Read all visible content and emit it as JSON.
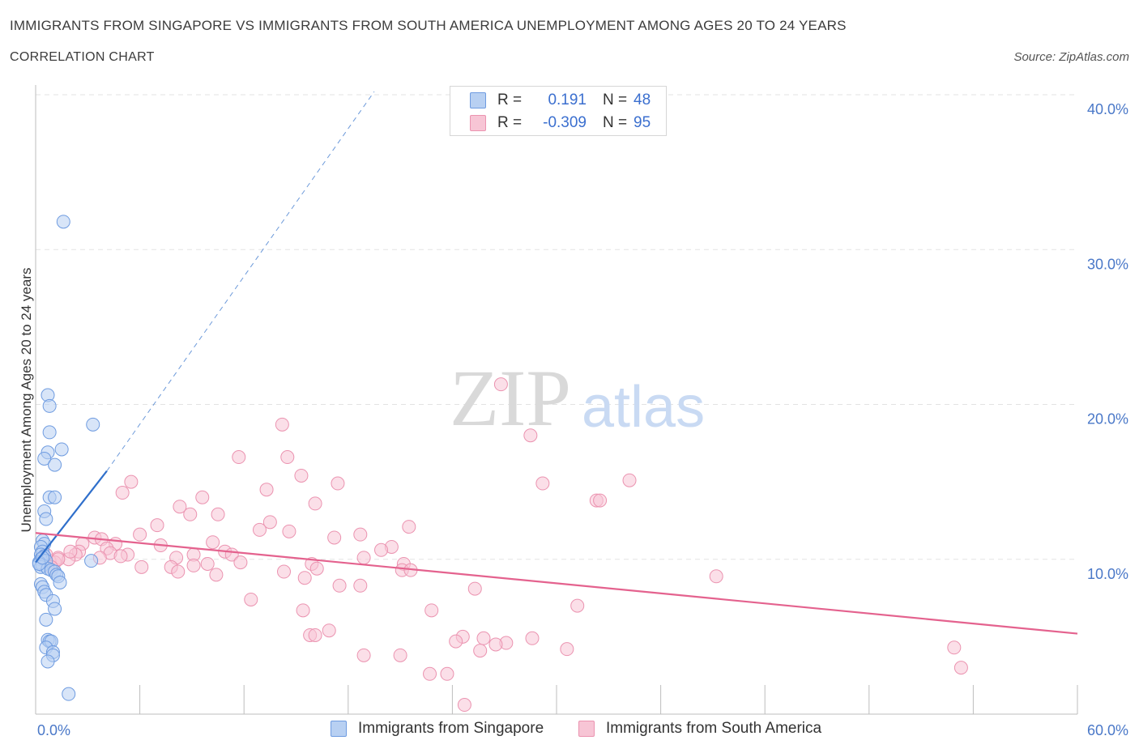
{
  "title": "IMMIGRANTS FROM SINGAPORE VS IMMIGRANTS FROM SOUTH AMERICA UNEMPLOYMENT AMONG AGES 20 TO 24 YEARS",
  "subtitle": "CORRELATION CHART",
  "source": "Source: ZipAtlas.com",
  "watermark": {
    "zip": "ZIP",
    "atlas": "atlas"
  },
  "colors": {
    "singapore_fill": "#b8d0f2",
    "singapore_stroke": "#6e9be0",
    "singapore_line": "#2f6fcb",
    "southamerica_fill": "#f7c5d5",
    "southamerica_stroke": "#eb93b0",
    "southamerica_line": "#e4628e",
    "grid": "#e3e3e3",
    "tick_text": "#4a78c8"
  },
  "legend": {
    "rows": [
      {
        "r_label": "R =",
        "r_value": "0.191",
        "n_label": "N =",
        "n_value": "48"
      },
      {
        "r_label": "R =",
        "r_value": "-0.309",
        "n_label": "N =",
        "n_value": "95"
      }
    ]
  },
  "chart_data": {
    "type": "scatter",
    "title": "IMMIGRANTS FROM SINGAPORE VS IMMIGRANTS FROM SOUTH AMERICA UNEMPLOYMENT AMONG AGES 20 TO 24 YEARS",
    "xlabel": "",
    "ylabel": "Unemployment Among Ages 20 to 24 years",
    "xlim": [
      0,
      60
    ],
    "ylim": [
      0,
      40
    ],
    "x_tick_labels": [
      "0.0%",
      "60.0%"
    ],
    "y_ticks": [
      10,
      20,
      30,
      40
    ],
    "y_tick_labels": [
      "10.0%",
      "20.0%",
      "30.0%",
      "40.0%"
    ],
    "grid": true,
    "legend_position": "top-center",
    "series": [
      {
        "name": "Immigrants from Singapore",
        "points": [
          [
            1.6,
            31.8
          ],
          [
            0.7,
            20.6
          ],
          [
            0.8,
            19.9
          ],
          [
            3.3,
            18.7
          ],
          [
            0.8,
            18.2
          ],
          [
            1.5,
            17.1
          ],
          [
            0.7,
            16.9
          ],
          [
            0.5,
            16.5
          ],
          [
            1.1,
            16.1
          ],
          [
            0.8,
            14.0
          ],
          [
            1.1,
            14.0
          ],
          [
            0.5,
            13.1
          ],
          [
            0.6,
            12.6
          ],
          [
            0.4,
            11.2
          ],
          [
            0.5,
            11.0
          ],
          [
            0.3,
            10.8
          ],
          [
            0.4,
            10.5
          ],
          [
            0.3,
            10.3
          ],
          [
            0.5,
            10.2
          ],
          [
            0.3,
            10.0
          ],
          [
            0.6,
            9.9
          ],
          [
            0.2,
            9.8
          ],
          [
            0.4,
            9.6
          ],
          [
            0.3,
            9.5
          ],
          [
            0.7,
            9.4
          ],
          [
            0.9,
            9.3
          ],
          [
            1.1,
            9.2
          ],
          [
            1.2,
            9.0
          ],
          [
            1.3,
            8.9
          ],
          [
            3.2,
            9.9
          ],
          [
            1.4,
            8.5
          ],
          [
            0.3,
            8.4
          ],
          [
            0.4,
            8.2
          ],
          [
            0.5,
            7.9
          ],
          [
            0.6,
            7.7
          ],
          [
            1.0,
            7.3
          ],
          [
            1.1,
            6.8
          ],
          [
            0.6,
            6.1
          ],
          [
            0.7,
            4.8
          ],
          [
            0.8,
            4.7
          ],
          [
            0.9,
            4.7
          ],
          [
            0.6,
            4.3
          ],
          [
            1.0,
            4.0
          ],
          [
            1.0,
            3.8
          ],
          [
            0.7,
            3.4
          ],
          [
            1.9,
            1.3
          ],
          [
            0.2,
            9.7
          ],
          [
            0.4,
            10.1
          ]
        ],
        "trend": {
          "x0": 0,
          "y0": 9.8,
          "x1": 4.1,
          "y1": 15.7,
          "extend_to": [
            19.5,
            40.2
          ]
        }
      },
      {
        "name": "Immigrants from South America",
        "points": [
          [
            26.8,
            21.3
          ],
          [
            28.5,
            18.0
          ],
          [
            14.2,
            18.7
          ],
          [
            11.7,
            16.6
          ],
          [
            14.5,
            16.6
          ],
          [
            15.3,
            15.4
          ],
          [
            5.5,
            15.0
          ],
          [
            17.4,
            14.9
          ],
          [
            29.2,
            14.9
          ],
          [
            34.2,
            15.1
          ],
          [
            13.3,
            14.5
          ],
          [
            5.0,
            14.3
          ],
          [
            9.6,
            14.0
          ],
          [
            32.3,
            13.8
          ],
          [
            32.5,
            13.8
          ],
          [
            16.1,
            13.6
          ],
          [
            8.3,
            13.4
          ],
          [
            8.9,
            12.9
          ],
          [
            10.5,
            12.9
          ],
          [
            13.5,
            12.4
          ],
          [
            7.0,
            12.2
          ],
          [
            21.5,
            12.1
          ],
          [
            12.9,
            11.9
          ],
          [
            14.6,
            11.8
          ],
          [
            6.0,
            11.6
          ],
          [
            18.7,
            11.6
          ],
          [
            17.2,
            11.4
          ],
          [
            3.4,
            11.4
          ],
          [
            3.8,
            11.3
          ],
          [
            10.2,
            11.1
          ],
          [
            2.7,
            11.0
          ],
          [
            4.6,
            11.0
          ],
          [
            7.2,
            10.9
          ],
          [
            20.5,
            10.8
          ],
          [
            4.1,
            10.7
          ],
          [
            19.9,
            10.6
          ],
          [
            2.5,
            10.5
          ],
          [
            10.9,
            10.5
          ],
          [
            4.3,
            10.4
          ],
          [
            5.3,
            10.3
          ],
          [
            2.3,
            10.3
          ],
          [
            9.1,
            10.3
          ],
          [
            11.3,
            10.3
          ],
          [
            4.9,
            10.2
          ],
          [
            3.7,
            10.1
          ],
          [
            8.1,
            10.1
          ],
          [
            18.9,
            10.1
          ],
          [
            1.3,
            10.1
          ],
          [
            1.9,
            10.0
          ],
          [
            0.8,
            9.9
          ],
          [
            1.1,
            9.8
          ],
          [
            11.8,
            9.8
          ],
          [
            9.9,
            9.7
          ],
          [
            15.9,
            9.7
          ],
          [
            21.2,
            9.7
          ],
          [
            9.1,
            9.6
          ],
          [
            6.1,
            9.5
          ],
          [
            7.8,
            9.5
          ],
          [
            16.2,
            9.4
          ],
          [
            21.1,
            9.3
          ],
          [
            14.3,
            9.2
          ],
          [
            21.6,
            9.3
          ],
          [
            8.2,
            9.2
          ],
          [
            10.4,
            9.0
          ],
          [
            15.5,
            8.8
          ],
          [
            39.2,
            8.9
          ],
          [
            17.5,
            8.3
          ],
          [
            18.7,
            8.3
          ],
          [
            25.3,
            8.1
          ],
          [
            12.4,
            7.4
          ],
          [
            31.2,
            7.0
          ],
          [
            15.4,
            6.7
          ],
          [
            22.8,
            6.7
          ],
          [
            16.9,
            5.4
          ],
          [
            15.8,
            5.1
          ],
          [
            16.1,
            5.1
          ],
          [
            24.6,
            5.0
          ],
          [
            25.8,
            4.9
          ],
          [
            28.6,
            4.9
          ],
          [
            24.2,
            4.7
          ],
          [
            27.1,
            4.6
          ],
          [
            26.5,
            4.5
          ],
          [
            30.6,
            4.2
          ],
          [
            21.0,
            3.8
          ],
          [
            25.6,
            4.1
          ],
          [
            18.9,
            3.8
          ],
          [
            22.7,
            2.6
          ],
          [
            23.7,
            2.6
          ],
          [
            52.9,
            4.3
          ],
          [
            53.3,
            3.0
          ],
          [
            24.7,
            0.6
          ],
          [
            0.6,
            10.3
          ],
          [
            1.3,
            10.0
          ],
          [
            2.0,
            10.5
          ],
          [
            0.9,
            9.5
          ]
        ],
        "trend": {
          "x0": 0,
          "y0": 11.7,
          "x1": 60,
          "y1": 5.2
        }
      }
    ]
  }
}
